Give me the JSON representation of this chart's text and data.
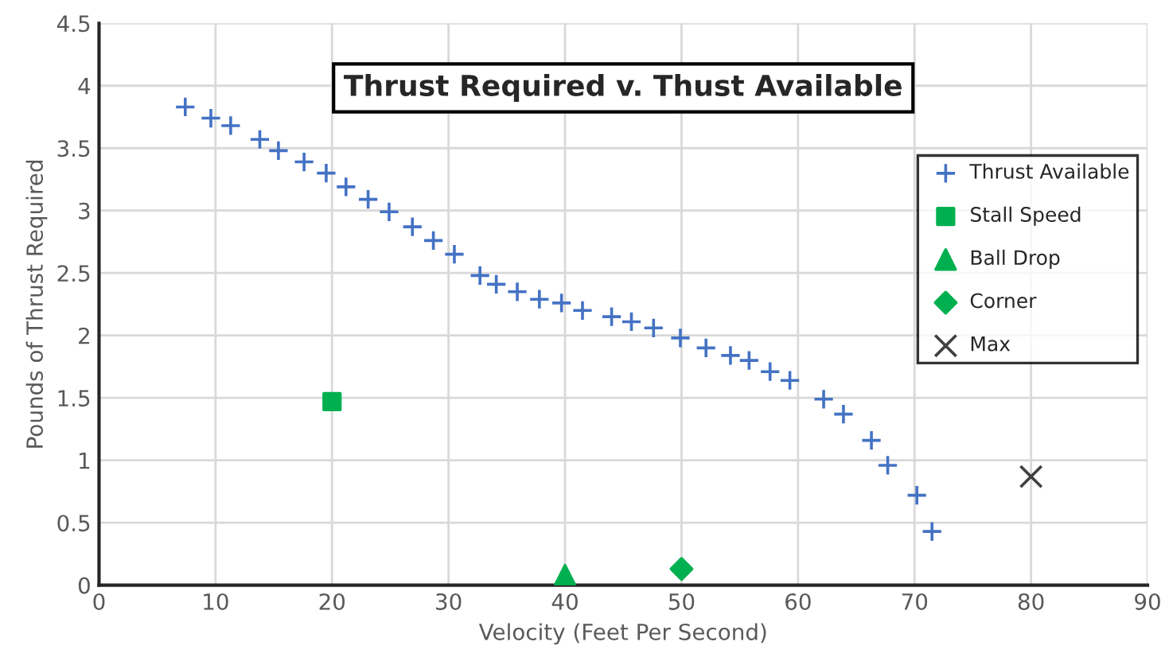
{
  "chart_data": {
    "type": "scatter",
    "title": "Thrust Required v. Thust Available",
    "xlabel": "Velocity (Feet Per Second)",
    "ylabel": "Pounds of Thrust Required",
    "xlim": [
      0,
      90
    ],
    "xticks": [
      0,
      10,
      20,
      30,
      40,
      50,
      60,
      70,
      80,
      90
    ],
    "ylim": [
      0,
      4.5
    ],
    "yticks": [
      0,
      0.5,
      1,
      1.5,
      2,
      2.5,
      3,
      3.5,
      4,
      4.5
    ],
    "grid": true,
    "legend": "right",
    "series": [
      {
        "name": "Thrust Available",
        "color": "#4472c4",
        "marker": "cross",
        "x": [
          7.4,
          9.6,
          11.3,
          13.8,
          15.4,
          17.6,
          19.5,
          21.2,
          23.1,
          24.9,
          26.9,
          28.7,
          30.5,
          32.7,
          34.1,
          35.9,
          37.8,
          39.7,
          41.5,
          44.0,
          45.7,
          47.6,
          49.9,
          52.1,
          54.2,
          55.8,
          57.6,
          59.3,
          62.2,
          63.9,
          66.3,
          67.7,
          70.2,
          71.5
        ],
        "values": [
          3.83,
          3.74,
          3.68,
          3.57,
          3.48,
          3.39,
          3.3,
          3.19,
          3.09,
          2.99,
          2.87,
          2.76,
          2.65,
          2.48,
          2.41,
          2.35,
          2.29,
          2.26,
          2.2,
          2.15,
          2.11,
          2.06,
          1.98,
          1.9,
          1.84,
          1.8,
          1.71,
          1.64,
          1.49,
          1.37,
          1.16,
          0.96,
          0.72,
          0.43
        ]
      },
      {
        "name": "Stall Speed",
        "color": "#00b050",
        "marker": "square",
        "x": [
          20
        ],
        "values": [
          1.47
        ]
      },
      {
        "name": "Ball Drop",
        "color": "#00b050",
        "marker": "triangle",
        "x": [
          40
        ],
        "values": [
          0.08
        ]
      },
      {
        "name": "Corner",
        "color": "#00b050",
        "marker": "diamond",
        "x": [
          50
        ],
        "values": [
          0.13
        ]
      },
      {
        "name": "Max",
        "color": "#404040",
        "marker": "x",
        "x": [
          80
        ],
        "values": [
          0.87
        ]
      }
    ]
  }
}
